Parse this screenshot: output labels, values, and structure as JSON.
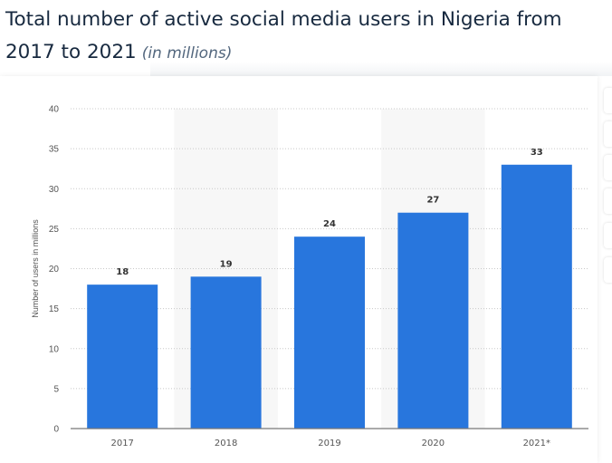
{
  "title": "Total number of active social media users in Nigeria from 2017 to 2021",
  "title_line1": "Total number of active social media users in Nigeria from",
  "title_line2": "2017 to 2021",
  "unit": "(in millions)",
  "chart_data": {
    "type": "bar",
    "categories": [
      "2017",
      "2018",
      "2019",
      "2020",
      "2021*"
    ],
    "values": [
      18,
      19,
      24,
      27,
      33
    ],
    "ylabel": "Number of users in millions",
    "xlabel": "",
    "ylim": [
      0,
      40
    ],
    "yticks": [
      0,
      5,
      10,
      15,
      20,
      25,
      30,
      35,
      40
    ],
    "grid": true,
    "data_labels": true,
    "bar_color": "#2876dd"
  }
}
